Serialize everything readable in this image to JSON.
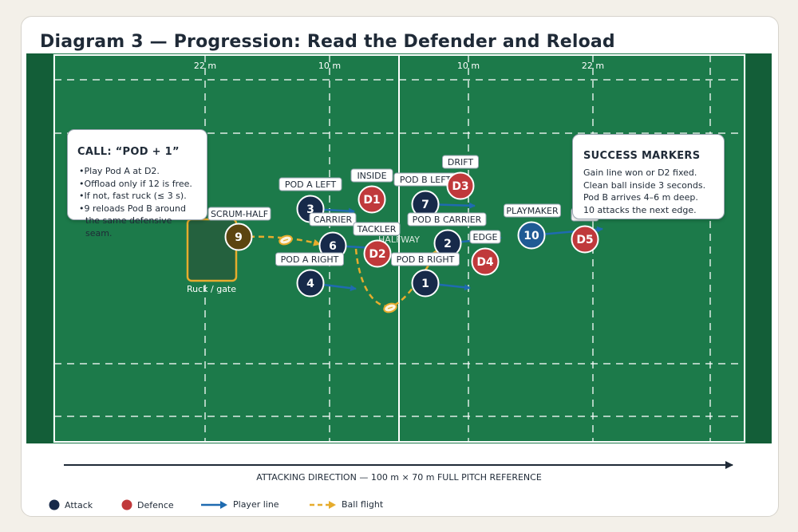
{
  "title": "Diagram 3 — Progression: Read the Defender and Reload",
  "colors": {
    "background": "#f3f0e9",
    "pitch": "#1c7a4a",
    "pitch_edge": "#135e38",
    "attack": "#172a4a",
    "attack_playmaker": "#1f5a94",
    "scrum_half": "#5c4510",
    "defence": "#c0393b",
    "player_line": "#1f6bb0",
    "ball_flight": "#e6ac2d",
    "ruck_fill": "#24613e",
    "ruck_border": "#e6ac2d"
  },
  "pitch_markings": {
    "labels": [
      "22 m",
      "10 m",
      "10 m",
      "22 m"
    ],
    "halfway": "HALFWAY"
  },
  "ruck": {
    "label": "Ruck / gate"
  },
  "attackers": [
    {
      "number": "9",
      "label": "SCRUM-HALF",
      "role": "scrum-half"
    },
    {
      "number": "3",
      "label": "POD A LEFT",
      "role": "pod"
    },
    {
      "number": "6",
      "label": "CARRIER",
      "role": "pod"
    },
    {
      "number": "4",
      "label": "POD A RIGHT",
      "role": "pod"
    },
    {
      "number": "7",
      "label": "POD B LEFT",
      "role": "pod"
    },
    {
      "number": "2",
      "label": "POD B CARRIER",
      "role": "pod"
    },
    {
      "number": "1",
      "label": "POD B RIGHT",
      "role": "pod"
    },
    {
      "number": "10",
      "label": "PLAYMAKER",
      "role": "playmaker"
    }
  ],
  "defenders": [
    {
      "number": "D1",
      "label": "INSIDE"
    },
    {
      "number": "D2",
      "label": "TACKLER"
    },
    {
      "number": "D3",
      "label": "DRIFT"
    },
    {
      "number": "D4",
      "label": "EDGE"
    },
    {
      "number": "D5",
      "label": ""
    }
  ],
  "call_panel": {
    "title": "CALL: “POD + 1”",
    "items": [
      "Play Pod A at D2.",
      "Offload only if 12 is free.",
      "If not, fast ruck (≤ 3 s).",
      "9 reloads Pod B around the same defensive seam."
    ]
  },
  "success_panel": {
    "title": "SUCCESS MARKERS",
    "items": [
      "Gain line won or D2 fixed.",
      "Clean ball inside 3 seconds.",
      "Pod B arrives 4–6 m deep.",
      "10 attacks the next edge."
    ]
  },
  "axis_caption": "ATTACKING DIRECTION — 100 m × 70 m FULL PITCH REFERENCE",
  "legend": {
    "attack": "Attack",
    "defence": "Defence",
    "player_line": "Player line",
    "ball_flight": "Ball flight"
  }
}
